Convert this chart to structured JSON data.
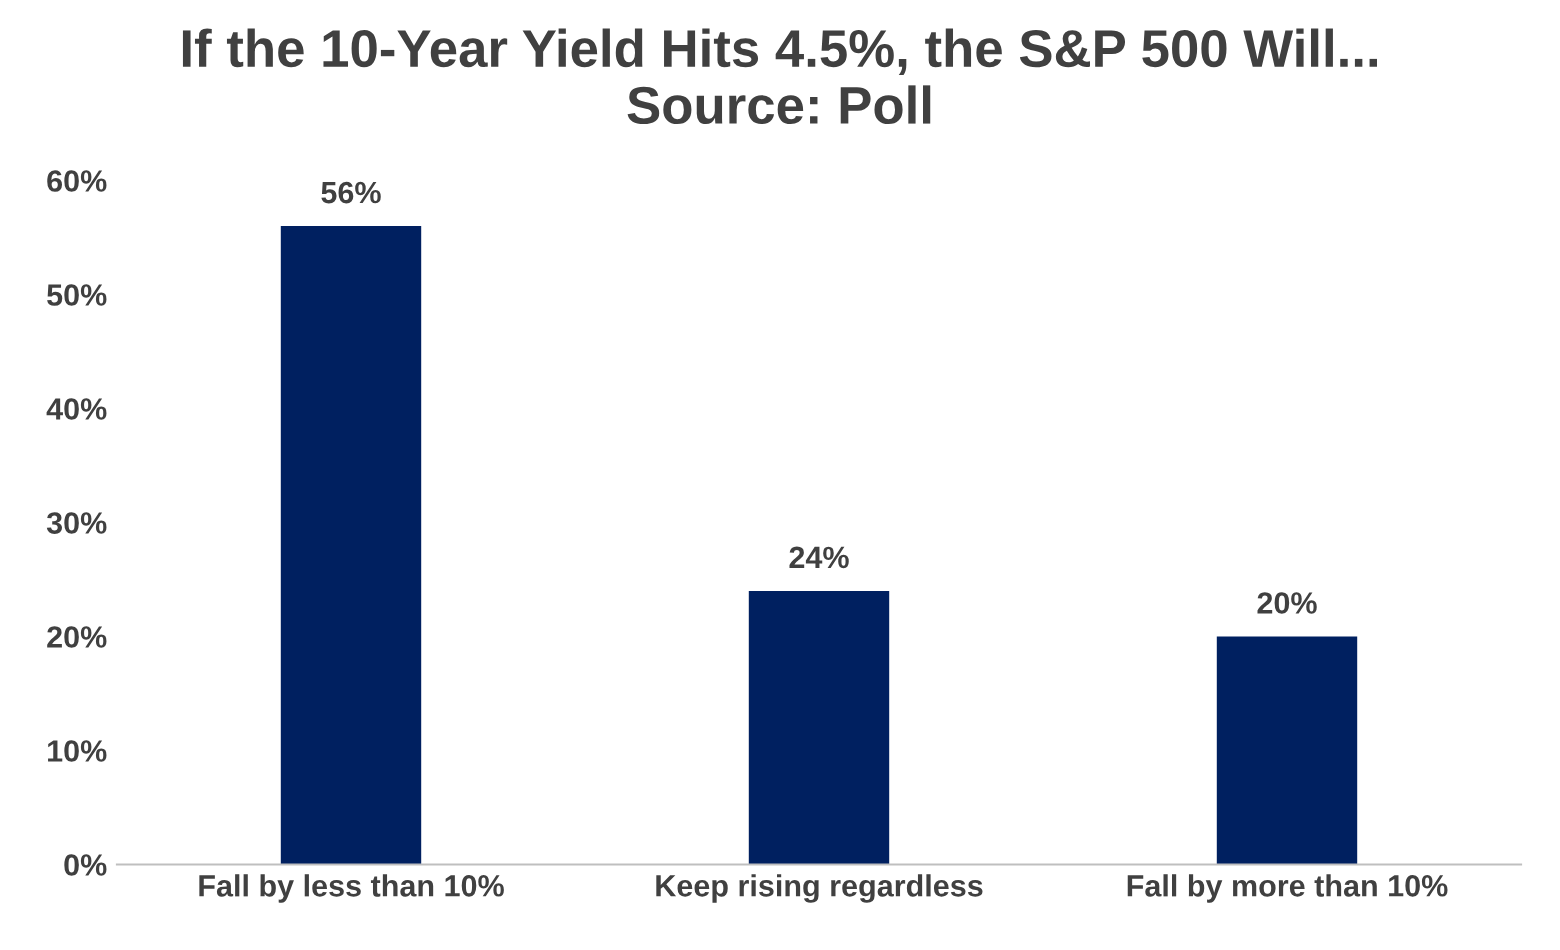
{
  "chart_data": {
    "type": "bar",
    "title": "If the 10-Year Yield Hits 4.5%, the S&P 500 Will...\nSource: Poll",
    "categories": [
      "Fall by less than 10%",
      "Keep rising regardless",
      "Fall by more than 10%"
    ],
    "values": [
      56,
      24,
      20
    ],
    "color": "#002060",
    "value_labels": [
      "56%",
      "24%",
      "20%"
    ],
    "ylim": [
      0,
      60
    ],
    "yticks": [
      {
        "value": 0,
        "label": "0%"
      },
      {
        "value": 10,
        "label": "10%"
      },
      {
        "value": 20,
        "label": "20%"
      },
      {
        "value": 30,
        "label": "30%"
      },
      {
        "value": 40,
        "label": "40%"
      },
      {
        "value": 50,
        "label": "50%"
      },
      {
        "value": 60,
        "label": "60%"
      }
    ],
    "grid": false
  }
}
